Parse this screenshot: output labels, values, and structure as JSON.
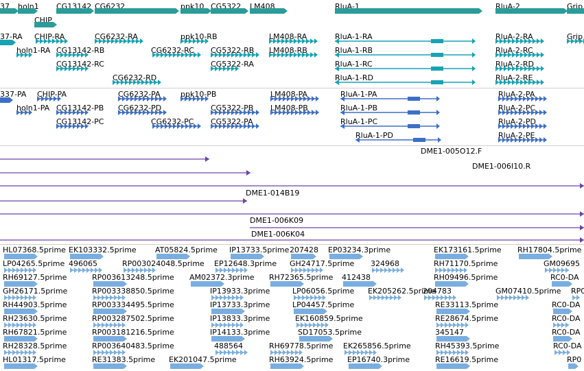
{
  "colors": {
    "gene": "#2a9c99",
    "mrna_ref": "#16a3b3",
    "mrna_pred": "#3d6fc7",
    "clone": "#6a45a6",
    "est": "#7aaee0",
    "separator": "#cfcfcf"
  },
  "tracks": [
    {
      "name": "gene-span",
      "items": [
        {
          "label": "37",
          "strand": "+"
        },
        {
          "label": "holn1",
          "strand": "+"
        },
        {
          "label": "CHIP",
          "strand": "+"
        },
        {
          "label": "CG13142",
          "strand": "+"
        },
        {
          "label": "CG6232",
          "strand": "+"
        },
        {
          "label": "ppk10",
          "strand": "+"
        },
        {
          "label": "CG5322",
          "strand": "+"
        },
        {
          "label": "LM408",
          "strand": "+"
        },
        {
          "label": "RluA-1",
          "strand": "+"
        },
        {
          "label": "RluA-2",
          "strand": "+"
        },
        {
          "label": "Grip",
          "strand": "+"
        }
      ]
    },
    {
      "name": "transcripts-ra",
      "items": [
        {
          "label": "37-RA"
        },
        {
          "label": "CHIP-RA"
        },
        {
          "label": "holn1-RA"
        },
        {
          "label": "CG13142-RB"
        },
        {
          "label": "CG13142-RC"
        },
        {
          "label": "CG6232-RA"
        },
        {
          "label": "CG6232-RC"
        },
        {
          "label": "CG6232-RD"
        },
        {
          "label": "ppk10-RB"
        },
        {
          "label": "CG5322-RB"
        },
        {
          "label": "CG5322-RA"
        },
        {
          "label": "LM408-RA"
        },
        {
          "label": "LM408-RB"
        },
        {
          "label": "RluA-1-RA"
        },
        {
          "label": "RluA-1-RB"
        },
        {
          "label": "RluA-1-RC"
        },
        {
          "label": "RluA-1-RD"
        },
        {
          "label": "RluA-2-RA"
        },
        {
          "label": "RluA-2-RC"
        },
        {
          "label": "RluA-2-RD"
        },
        {
          "label": "RluA-2-RE"
        },
        {
          "label": "Grip"
        }
      ]
    },
    {
      "name": "transcripts-pa",
      "items": [
        {
          "label": "337-PA"
        },
        {
          "label": "CHIP-PA"
        },
        {
          "label": "holn1-PA"
        },
        {
          "label": "CG13142-PB"
        },
        {
          "label": "CG13142-PC"
        },
        {
          "label": "CG6232-PA"
        },
        {
          "label": "CG6232-PD"
        },
        {
          "label": "CG6232-PC"
        },
        {
          "label": "ppk10-PB"
        },
        {
          "label": "CG5322-PB"
        },
        {
          "label": "CG5322-PA"
        },
        {
          "label": "LM408-PA"
        },
        {
          "label": "LM408-PB"
        },
        {
          "label": "RluA-1-PA"
        },
        {
          "label": "RluA-1-PB"
        },
        {
          "label": "RluA-1-PC"
        },
        {
          "label": "RluA-1-PD"
        },
        {
          "label": "RluA-2-PA"
        },
        {
          "label": "RluA-2-PC"
        },
        {
          "label": "RluA-2-PD"
        },
        {
          "label": "RluA-2-PE"
        }
      ]
    },
    {
      "name": "clones",
      "items": [
        {
          "label": "DME1-005O12.F"
        },
        {
          "label": "DME1-006I10.R"
        },
        {
          "label": "DME1-014B19"
        },
        {
          "label": "DME1-006K09"
        },
        {
          "label": "DME1-006K04"
        }
      ]
    },
    {
      "name": "est-alignments",
      "items": [
        {
          "label": "HL07368.5prime"
        },
        {
          "label": "EK103332.5prime"
        },
        {
          "label": "AT05824.5prime"
        },
        {
          "label": "IP13733.5prime"
        },
        {
          "label": "207428"
        },
        {
          "label": "EP03234.3prime"
        },
        {
          "label": "EK173161.5prime"
        },
        {
          "label": "RH17804.5prime"
        },
        {
          "label": "LP04265.5prime"
        },
        {
          "label": "496065"
        },
        {
          "label": "RP003024048.5prime"
        },
        {
          "label": "EP12648.3prime"
        },
        {
          "label": "GH24717.5prime"
        },
        {
          "label": "324968"
        },
        {
          "label": "RH71170.5prime"
        },
        {
          "label": "GM09695"
        },
        {
          "label": "RH69127.5prime"
        },
        {
          "label": "RP003613248.5prime"
        },
        {
          "label": "AM02372.3prime"
        },
        {
          "label": "RH72365.5prime"
        },
        {
          "label": "412438"
        },
        {
          "label": "RH09496.5prime"
        },
        {
          "label": "RC0-DA"
        },
        {
          "label": "GH26171.5prime"
        },
        {
          "label": "RP003338850.5prime"
        },
        {
          "label": "IP13933.3prime"
        },
        {
          "label": "LP06056.5prime"
        },
        {
          "label": "EK205262.5prime"
        },
        {
          "label": "204783"
        },
        {
          "label": "GM07410.5prime"
        },
        {
          "label": "RP0"
        },
        {
          "label": "RH44903.5prime"
        },
        {
          "label": "RP003334495.5prime"
        },
        {
          "label": "IP13733.3prime"
        },
        {
          "label": "LP04457.5prime"
        },
        {
          "label": "RE33113.5prime"
        },
        {
          "label": "RC0-DA"
        },
        {
          "label": "RH23630.5prime"
        },
        {
          "label": "RP003287502.5prime"
        },
        {
          "label": "IP13833.3prime"
        },
        {
          "label": "EK160859.5prime"
        },
        {
          "label": "RE28674.5prime"
        },
        {
          "label": "RC0-DA"
        },
        {
          "label": "RH67821.5prime"
        },
        {
          "label": "RP003181216.5prime"
        },
        {
          "label": "IP14133.3prime"
        },
        {
          "label": "SD17053.5prime"
        },
        {
          "label": "345147"
        },
        {
          "label": "RC0-DA"
        },
        {
          "label": "RH28328.5prime"
        },
        {
          "label": "RP003640483.5prime"
        },
        {
          "label": "488564"
        },
        {
          "label": "RH69778.5prime"
        },
        {
          "label": "EK265856.5prime"
        },
        {
          "label": "RH45393.5prime"
        },
        {
          "label": "RC0-DA"
        },
        {
          "label": "HL01317.5prime"
        },
        {
          "label": "RE31383.5prime"
        },
        {
          "label": "EK201047.5prime"
        },
        {
          "label": "RH63924.5prime"
        },
        {
          "label": "EP16740.3prime"
        },
        {
          "label": "RE16619.5prime"
        },
        {
          "label": "RP0"
        }
      ]
    }
  ]
}
